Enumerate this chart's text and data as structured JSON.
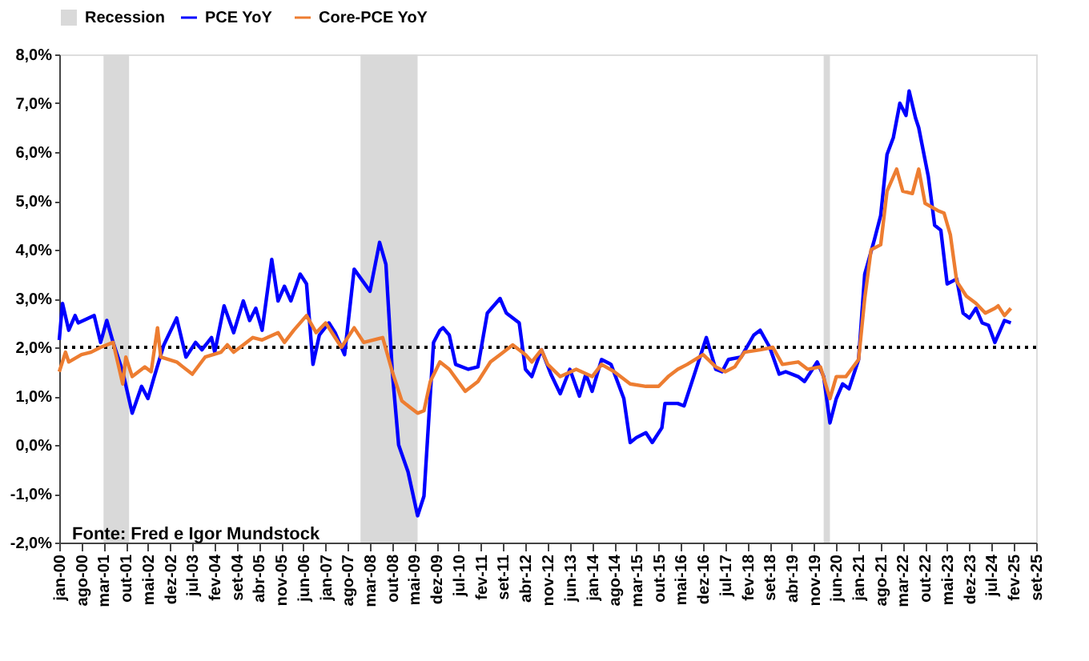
{
  "chart_data": {
    "type": "line",
    "legend": "top",
    "xlim": [
      "2000-01",
      "2025-09"
    ],
    "xticks": [
      {
        "value": "2000-01",
        "label": "jan-00"
      },
      {
        "value": "2000-08",
        "label": "ago-00"
      },
      {
        "value": "2001-03",
        "label": "mar-01"
      },
      {
        "value": "2001-10",
        "label": "out-01"
      },
      {
        "value": "2002-05",
        "label": "mai-02"
      },
      {
        "value": "2002-12",
        "label": "dez-02"
      },
      {
        "value": "2003-07",
        "label": "jul-03"
      },
      {
        "value": "2004-02",
        "label": "fev-04"
      },
      {
        "value": "2004-09",
        "label": "set-04"
      },
      {
        "value": "2005-04",
        "label": "abr-05"
      },
      {
        "value": "2005-11",
        "label": "nov-05"
      },
      {
        "value": "2006-06",
        "label": "jun-06"
      },
      {
        "value": "2007-01",
        "label": "jan-07"
      },
      {
        "value": "2007-08",
        "label": "ago-07"
      },
      {
        "value": "2008-03",
        "label": "mar-08"
      },
      {
        "value": "2008-10",
        "label": "out-08"
      },
      {
        "value": "2009-05",
        "label": "mai-09"
      },
      {
        "value": "2009-12",
        "label": "dez-09"
      },
      {
        "value": "2010-07",
        "label": "jul-10"
      },
      {
        "value": "2011-02",
        "label": "fev-11"
      },
      {
        "value": "2011-09",
        "label": "set-11"
      },
      {
        "value": "2012-04",
        "label": "abr-12"
      },
      {
        "value": "2012-11",
        "label": "nov-12"
      },
      {
        "value": "2013-06",
        "label": "jun-13"
      },
      {
        "value": "2014-01",
        "label": "jan-14"
      },
      {
        "value": "2014-08",
        "label": "ago-14"
      },
      {
        "value": "2015-03",
        "label": "mar-15"
      },
      {
        "value": "2015-10",
        "label": "out-15"
      },
      {
        "value": "2016-05",
        "label": "mai-16"
      },
      {
        "value": "2016-12",
        "label": "dez-16"
      },
      {
        "value": "2017-07",
        "label": "jul-17"
      },
      {
        "value": "2018-02",
        "label": "fev-18"
      },
      {
        "value": "2018-09",
        "label": "set-18"
      },
      {
        "value": "2019-04",
        "label": "abr-19"
      },
      {
        "value": "2019-11",
        "label": "nov-19"
      },
      {
        "value": "2020-06",
        "label": "jun-20"
      },
      {
        "value": "2021-01",
        "label": "jan-21"
      },
      {
        "value": "2021-08",
        "label": "ago-21"
      },
      {
        "value": "2022-03",
        "label": "mar-22"
      },
      {
        "value": "2022-10",
        "label": "out-22"
      },
      {
        "value": "2023-05",
        "label": "mai-23"
      },
      {
        "value": "2023-12",
        "label": "dez-23"
      },
      {
        "value": "2024-07",
        "label": "jul-24"
      },
      {
        "value": "2025-02",
        "label": "fev-25"
      },
      {
        "value": "2025-09",
        "label": "set-25"
      }
    ],
    "ylim": [
      -2,
      8
    ],
    "yticks": [
      {
        "value": -2,
        "label": "-2,0%"
      },
      {
        "value": -1,
        "label": "-1,0%"
      },
      {
        "value": 0,
        "label": "0,0%"
      },
      {
        "value": 1,
        "label": "1,0%"
      },
      {
        "value": 2,
        "label": "2,0%"
      },
      {
        "value": 3,
        "label": "3,0%"
      },
      {
        "value": 4,
        "label": "4,0%"
      },
      {
        "value": 5,
        "label": "5,0%"
      },
      {
        "value": 6,
        "label": "6,0%"
      },
      {
        "value": 7,
        "label": "7,0%"
      },
      {
        "value": 8,
        "label": "8,0%"
      }
    ],
    "bands": [
      {
        "axis": "x",
        "from": "2001-03",
        "to": "2001-11",
        "label": "Recession",
        "color": "#d9d9d9"
      },
      {
        "axis": "x",
        "from": "2007-12",
        "to": "2009-06",
        "color": "#d9d9d9"
      },
      {
        "axis": "x",
        "from": "2020-02",
        "to": "2020-04",
        "color": "#d9d9d9"
      }
    ],
    "ref_lines": [
      {
        "axis": "y",
        "value": 2,
        "color": "#000000",
        "line_style": "dotted"
      }
    ],
    "annotations": [
      "Fonte: Fred e Igor Mundstock"
    ],
    "series": [
      {
        "name": "PCE YoY",
        "color": "#0000ff",
        "x": [
          "2000-01",
          "2000-02",
          "2000-04",
          "2000-06",
          "2000-07",
          "2000-12",
          "2001-02",
          "2001-04",
          "2001-06",
          "2001-09",
          "2001-12",
          "2002-03",
          "2002-05",
          "2002-07",
          "2002-10",
          "2003-02",
          "2003-05",
          "2003-08",
          "2003-10",
          "2004-01",
          "2004-02",
          "2004-05",
          "2004-08",
          "2004-11",
          "2005-01",
          "2005-03",
          "2005-05",
          "2005-08",
          "2005-10",
          "2005-12",
          "2006-02",
          "2006-05",
          "2006-07",
          "2006-09",
          "2006-11",
          "2007-02",
          "2007-04",
          "2007-07",
          "2007-10",
          "2008-03",
          "2008-06",
          "2008-08",
          "2008-10",
          "2008-12",
          "2009-03",
          "2009-06",
          "2009-08",
          "2009-11",
          "2010-01",
          "2010-02",
          "2010-04",
          "2010-06",
          "2010-10",
          "2011-01",
          "2011-04",
          "2011-08",
          "2011-10",
          "2012-02",
          "2012-04",
          "2012-06",
          "2012-09",
          "2012-12",
          "2013-03",
          "2013-06",
          "2013-09",
          "2013-11",
          "2014-01",
          "2014-04",
          "2014-07",
          "2014-11",
          "2015-01",
          "2015-03",
          "2015-06",
          "2015-08",
          "2015-11",
          "2015-12",
          "2016-04",
          "2016-06",
          "2016-09",
          "2017-01",
          "2017-04",
          "2017-06",
          "2017-08",
          "2017-12",
          "2018-04",
          "2018-06",
          "2018-09",
          "2018-12",
          "2019-02",
          "2019-06",
          "2019-08",
          "2019-12",
          "2020-02",
          "2020-04",
          "2020-06",
          "2020-08",
          "2020-10",
          "2021-01",
          "2021-03",
          "2021-06",
          "2021-08",
          "2021-10",
          "2021-12",
          "2022-02",
          "2022-04",
          "2022-05",
          "2022-07",
          "2022-08",
          "2022-11",
          "2023-01",
          "2023-03",
          "2023-05",
          "2023-08",
          "2023-10",
          "2023-12",
          "2024-02",
          "2024-04",
          "2024-06",
          "2024-08",
          "2024-11",
          "2025-01"
        ],
        "values": [
          2.15,
          2.9,
          2.35,
          2.65,
          2.5,
          2.65,
          2.1,
          2.55,
          2.1,
          1.5,
          0.65,
          1.2,
          0.95,
          1.4,
          2.05,
          2.6,
          1.8,
          2.1,
          1.95,
          2.2,
          1.9,
          2.85,
          2.3,
          2.95,
          2.55,
          2.8,
          2.35,
          3.8,
          2.95,
          3.25,
          2.95,
          3.5,
          3.3,
          1.65,
          2.25,
          2.5,
          2.3,
          1.85,
          3.6,
          3.15,
          4.15,
          3.7,
          1.5,
          0.0,
          -0.55,
          -1.45,
          -1.05,
          2.1,
          2.35,
          2.4,
          2.25,
          1.65,
          1.55,
          1.6,
          2.7,
          3.0,
          2.7,
          2.5,
          1.55,
          1.4,
          1.95,
          1.45,
          1.05,
          1.55,
          1.0,
          1.45,
          1.1,
          1.75,
          1.65,
          0.95,
          0.05,
          0.15,
          0.25,
          0.05,
          0.35,
          0.85,
          0.85,
          0.8,
          1.4,
          2.2,
          1.55,
          1.5,
          1.75,
          1.8,
          2.25,
          2.35,
          2.0,
          1.45,
          1.5,
          1.4,
          1.3,
          1.7,
          1.4,
          0.45,
          0.95,
          1.25,
          1.15,
          1.75,
          3.5,
          4.2,
          4.7,
          5.95,
          6.3,
          7.0,
          6.75,
          7.25,
          6.7,
          6.5,
          5.5,
          4.5,
          4.4,
          3.3,
          3.4,
          2.7,
          2.6,
          2.8,
          2.5,
          2.45,
          2.1,
          2.55,
          2.5
        ]
      },
      {
        "name": "Core-PCE YoY",
        "color": "#ed7d31",
        "x": [
          "2000-01",
          "2000-03",
          "2000-04",
          "2000-08",
          "2000-11",
          "2001-02",
          "2001-06",
          "2001-09",
          "2001-10",
          "2001-12",
          "2002-04",
          "2002-06",
          "2002-08",
          "2002-09",
          "2003-02",
          "2003-04",
          "2003-07",
          "2003-11",
          "2004-04",
          "2004-06",
          "2004-08",
          "2004-11",
          "2005-02",
          "2005-05",
          "2005-10",
          "2005-12",
          "2006-03",
          "2006-07",
          "2006-10",
          "2007-01",
          "2007-04",
          "2007-06",
          "2007-10",
          "2008-01",
          "2008-07",
          "2008-10",
          "2009-01",
          "2009-04",
          "2009-06",
          "2009-08",
          "2009-10",
          "2010-01",
          "2010-04",
          "2010-09",
          "2011-01",
          "2011-05",
          "2011-08",
          "2011-12",
          "2012-04",
          "2012-06",
          "2012-09",
          "2012-11",
          "2013-03",
          "2013-08",
          "2014-01",
          "2014-04",
          "2014-08",
          "2015-01",
          "2015-06",
          "2015-10",
          "2016-01",
          "2016-04",
          "2016-07",
          "2016-12",
          "2017-04",
          "2017-07",
          "2017-10",
          "2018-01",
          "2018-06",
          "2018-10",
          "2019-01",
          "2019-06",
          "2019-09",
          "2020-01",
          "2020-04",
          "2020-06",
          "2020-09",
          "2021-01",
          "2021-03",
          "2021-05",
          "2021-08",
          "2021-10",
          "2022-01",
          "2022-03",
          "2022-06",
          "2022-08",
          "2022-10",
          "2023-02",
          "2023-04",
          "2023-06",
          "2023-08",
          "2023-11",
          "2024-02",
          "2024-05",
          "2024-08",
          "2024-09",
          "2024-11",
          "2025-01"
        ],
        "values": [
          1.5,
          1.9,
          1.7,
          1.85,
          1.9,
          2.0,
          2.1,
          1.25,
          1.8,
          1.4,
          1.6,
          1.5,
          2.4,
          1.8,
          1.7,
          1.6,
          1.45,
          1.8,
          1.9,
          2.05,
          1.9,
          2.05,
          2.2,
          2.15,
          2.3,
          2.1,
          2.35,
          2.65,
          2.3,
          2.5,
          2.2,
          2.0,
          2.4,
          2.1,
          2.2,
          1.5,
          0.9,
          0.75,
          0.65,
          0.7,
          1.3,
          1.7,
          1.55,
          1.1,
          1.3,
          1.7,
          1.85,
          2.05,
          1.85,
          1.7,
          1.95,
          1.65,
          1.4,
          1.55,
          1.4,
          1.65,
          1.5,
          1.25,
          1.2,
          1.2,
          1.4,
          1.55,
          1.65,
          1.85,
          1.6,
          1.5,
          1.6,
          1.9,
          1.95,
          2.0,
          1.65,
          1.7,
          1.55,
          1.6,
          0.95,
          1.4,
          1.4,
          1.75,
          3.0,
          4.0,
          4.1,
          5.2,
          5.65,
          5.2,
          5.15,
          5.65,
          4.95,
          4.8,
          4.75,
          4.3,
          3.35,
          3.05,
          2.9,
          2.7,
          2.8,
          2.85,
          2.65,
          2.8
        ]
      }
    ]
  }
}
